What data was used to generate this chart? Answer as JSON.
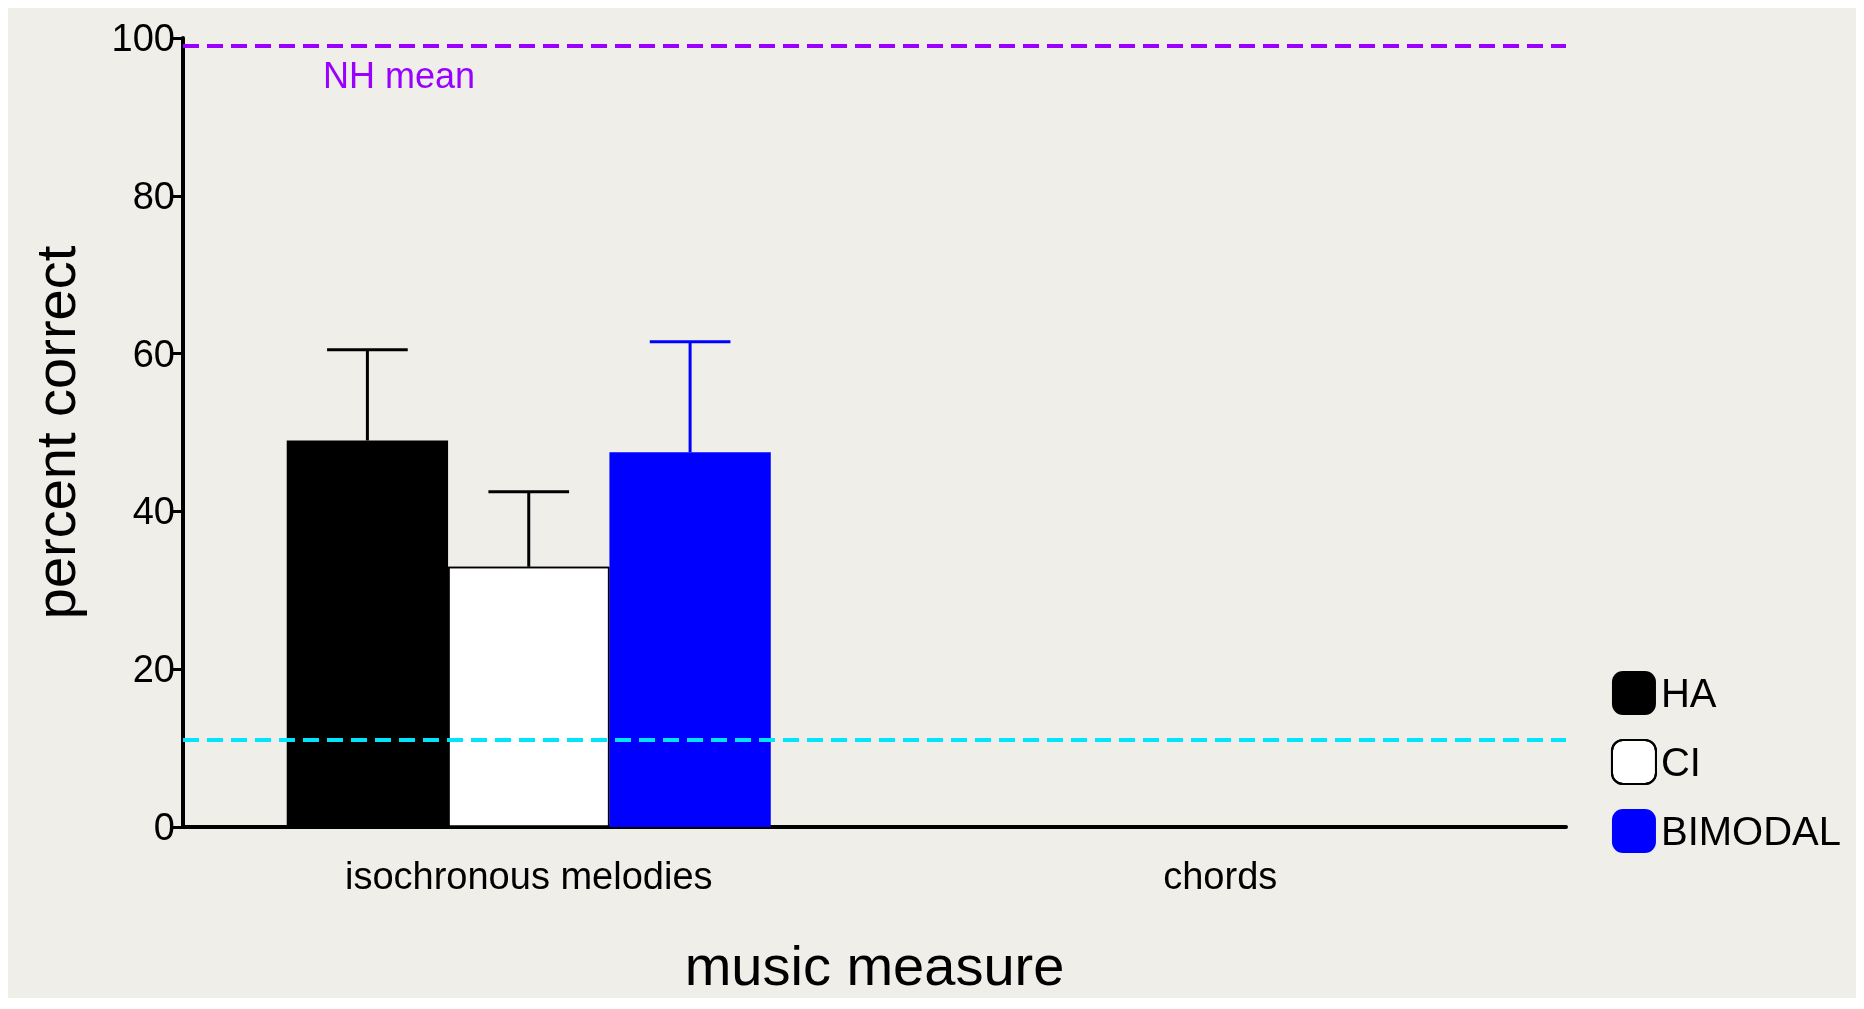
{
  "chart_data": {
    "type": "bar",
    "xlabel": "music measure",
    "ylabel": "percent correct",
    "categories": [
      "isochronous melodies",
      "chords"
    ],
    "series": [
      {
        "name": "HA",
        "color": "#000000",
        "values": [
          49,
          null
        ],
        "errors": [
          [
            49,
            60.5
          ],
          null
        ]
      },
      {
        "name": "CI",
        "color": "#ffffff",
        "values": [
          33,
          null
        ],
        "errors": [
          [
            33,
            42.5
          ],
          null
        ]
      },
      {
        "name": "BIMODAL",
        "color": "#0000ff",
        "values": [
          47.5,
          null
        ],
        "errors": [
          [
            47.5,
            61.5
          ],
          null
        ]
      }
    ],
    "ylim": [
      0,
      100
    ],
    "yticks": [
      0,
      20,
      40,
      60,
      80,
      100
    ],
    "grid": false,
    "legend": "bottom right",
    "ref_lines": [
      {
        "axis": "y",
        "value": 99,
        "label": "NH mean",
        "color": "#9900ff",
        "line_style": "dashed"
      },
      {
        "axis": "y",
        "value": 11,
        "label": null,
        "color": "#00e5ff",
        "line_style": "dashed"
      }
    ]
  }
}
